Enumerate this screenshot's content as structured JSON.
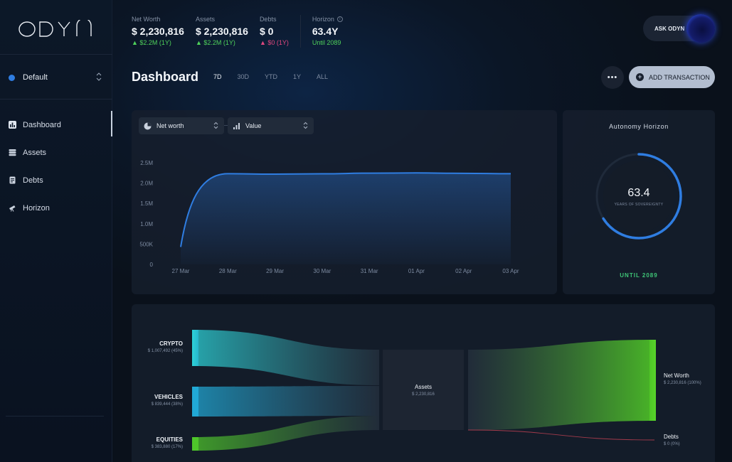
{
  "app": {
    "logo_text": "ODYN"
  },
  "sidebar": {
    "portfolio": "Default",
    "items": [
      {
        "label": "Dashboard",
        "icon": "chart-icon",
        "active": true
      },
      {
        "label": "Assets",
        "icon": "stack-icon",
        "active": false
      },
      {
        "label": "Debts",
        "icon": "document-icon",
        "active": false
      },
      {
        "label": "Horizon",
        "icon": "telescope-icon",
        "active": false
      }
    ]
  },
  "header": {
    "stats": [
      {
        "label": "Net Worth",
        "value": "$ 2,230,816",
        "change": "▲ $2.2M (1Y)",
        "tone": "up"
      },
      {
        "label": "Assets",
        "value": "$ 2,230,816",
        "change": "▲ $2.2M (1Y)",
        "tone": "up"
      },
      {
        "label": "Debts",
        "value": "$ 0",
        "change": "▲ $0 (1Y)",
        "tone": "pink"
      }
    ],
    "horizon": {
      "label": "Horizon",
      "value": "63.4Y",
      "sub": "Until 2089"
    },
    "ask_button": "ASK ODYN"
  },
  "page": {
    "title": "Dashboard",
    "ranges": [
      "7D",
      "30D",
      "YTD",
      "1Y",
      "ALL"
    ],
    "active_range": "7D",
    "more_label": "•••",
    "add_label": "ADD TRANSACTION"
  },
  "chart_controls": {
    "metric": "Net worth",
    "mode": "Value"
  },
  "chart_data": {
    "type": "line",
    "x": [
      "27 Mar",
      "28 Mar",
      "29 Mar",
      "30 Mar",
      "31 Mar",
      "01 Apr",
      "02 Apr",
      "03 Apr"
    ],
    "series": [
      {
        "values": [
          430000,
          2230816,
          2220000,
          2228000,
          2245000,
          2250000,
          2240000,
          2230816
        ]
      }
    ],
    "y_ticks": [
      "0",
      "500K",
      "1.0M",
      "1.5M",
      "2.0M",
      "2.5M"
    ],
    "ylim": [
      0,
      2500000
    ],
    "grid": false,
    "colors": {
      "line": "#2f7de1"
    }
  },
  "autonomy": {
    "title": "Autonomy Horizon",
    "value": "63.4",
    "sub": "YEARS OF SOVEREIGNTY",
    "until": "UNTIL 2089",
    "progress": 0.66
  },
  "sankey": {
    "sources": [
      {
        "name": "CRYPTO",
        "value": "$ 1,007,492 (45%)",
        "color": "#2dd3d8"
      },
      {
        "name": "VEHICLES",
        "value": "$ 839,444 (38%)",
        "color": "#21a9d6"
      },
      {
        "name": "EQUITIES",
        "value": "$ 383,880 (17%)",
        "color": "#4ec62a"
      }
    ],
    "middle": {
      "name": "Assets",
      "value": "$ 2,230,816"
    },
    "targets": [
      {
        "name": "Net Worth",
        "value": "$ 2,230,816 (100%)",
        "color": "#4fc627"
      },
      {
        "name": "Debts",
        "value": "$ 0 (0%)",
        "color": "#e0475a"
      }
    ]
  }
}
